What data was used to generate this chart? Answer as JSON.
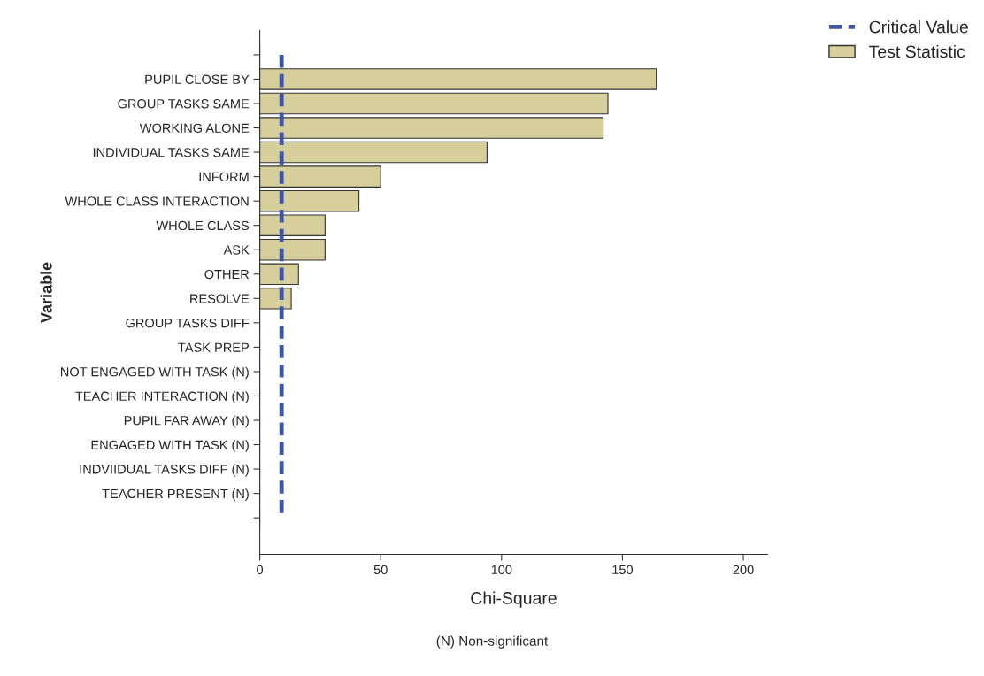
{
  "chart_data": {
    "type": "bar",
    "orientation": "horizontal",
    "xlabel": "Chi-Square",
    "ylabel": "Variable",
    "categories": [
      null,
      "PUPIL CLOSE BY",
      "GROUP TASKS SAME",
      "WORKING ALONE",
      "INDIVIDUAL TASKS SAME",
      "INFORM",
      "WHOLE CLASS INTERACTION",
      "WHOLE CLASS",
      "ASK",
      "OTHER",
      "RESOLVE",
      "GROUP TASKS DIFF",
      "TASK PREP",
      "NOT ENGAGED WITH TASK (N)",
      "TEACHER INTERACTION (N)",
      "PUPIL FAR AWAY (N)",
      "ENGAGED WITH TASK (N)",
      "INDVIIDUAL TASKS DIFF (N)",
      "TEACHER PRESENT (N)",
      null
    ],
    "series": [
      {
        "name": "Test Statistic",
        "color": "#d6cf9c",
        "values": [
          null,
          164,
          144,
          142,
          94,
          50,
          41,
          27,
          27,
          16,
          13,
          0,
          0,
          0,
          0,
          0,
          0,
          0,
          0,
          null
        ]
      }
    ],
    "ref_lines": [
      {
        "axis": "x",
        "value": 9,
        "label": "Critical Value",
        "color": "#3f56a8",
        "line_style": "dashed"
      }
    ],
    "xlim": [
      0,
      210
    ],
    "xticks": [
      0,
      50,
      100,
      150,
      200
    ],
    "grid": false,
    "legend": "top right",
    "annotations": [
      "(N) Non-significant"
    ]
  }
}
